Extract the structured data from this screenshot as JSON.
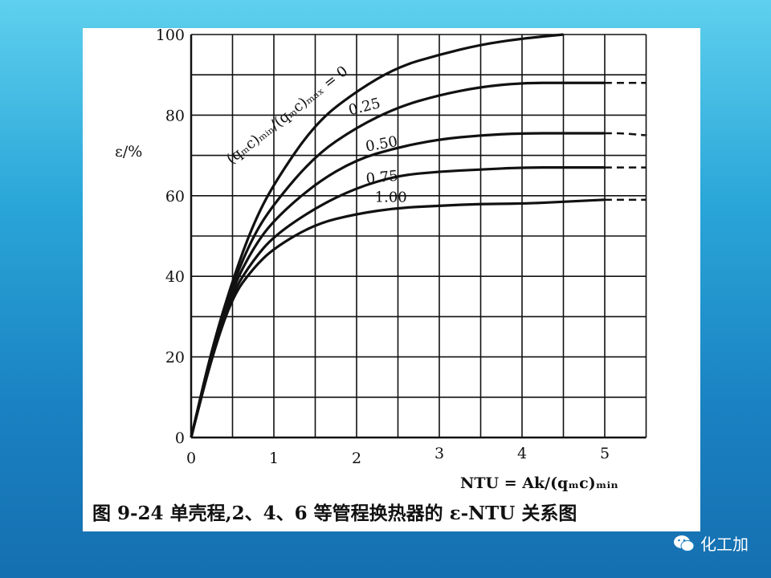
{
  "caption": "图 9-24   单壳程,2、4、6 等管程换热器的 ε-NTU 关系图",
  "watermark": {
    "text": "化工加",
    "icon": "wechat-icon"
  },
  "chart_data": {
    "type": "line",
    "xlabel": "NTU = Ak/(qₘc)ₘᵢₙ",
    "ylabel": "ε/%",
    "xlim": [
      0,
      5.5
    ],
    "ylim": [
      0,
      100
    ],
    "x_ticks": [
      "0",
      "1",
      "2",
      "3",
      "4",
      "5"
    ],
    "y_ticks": [
      "0",
      "20",
      "40",
      "60",
      "80",
      "100"
    ],
    "grid": true,
    "ratio_label": "(qₘc)ₘᵢₙ/(qₘc)ₘₐₓ = 0",
    "series": [
      {
        "name": "0",
        "x": [
          0,
          0.25,
          0.5,
          0.75,
          1,
          1.5,
          2,
          2.5,
          3,
          3.5,
          4,
          4.5
        ],
        "values": [
          0,
          22,
          39,
          53,
          63,
          78,
          86,
          92,
          95,
          97.5,
          99,
          100
        ]
      },
      {
        "name": "0.25",
        "x": [
          0,
          0.25,
          0.5,
          0.75,
          1,
          1.5,
          2,
          2.5,
          3,
          3.5,
          4,
          4.5,
          5,
          5.2,
          5.5
        ],
        "values": [
          0,
          22,
          38,
          50,
          58,
          70,
          77,
          82,
          85,
          87,
          88,
          88,
          88,
          88,
          88
        ]
      },
      {
        "name": "0.50",
        "x": [
          0,
          0.25,
          0.5,
          0.75,
          1,
          1.5,
          2,
          2.5,
          3,
          3.5,
          4,
          4.5,
          5,
          5.2,
          5.5
        ],
        "values": [
          0,
          21,
          37,
          47,
          54,
          63,
          69,
          72,
          74,
          75,
          75.5,
          75.5,
          75.5,
          75.5,
          75
        ]
      },
      {
        "name": "0.75",
        "x": [
          0,
          0.25,
          0.5,
          0.75,
          1,
          1.5,
          2,
          2.5,
          3,
          3.5,
          4,
          4.5,
          5,
          5.2,
          5.5
        ],
        "values": [
          0,
          21,
          36,
          44,
          50,
          57,
          62,
          65,
          66,
          66.5,
          67,
          67,
          67,
          67,
          67
        ]
      },
      {
        "name": "1.00",
        "x": [
          0,
          0.25,
          0.5,
          0.75,
          1,
          1.5,
          2,
          2.5,
          3,
          3.5,
          4,
          4.5,
          5,
          5.2,
          5.5
        ],
        "values": [
          0,
          20,
          35,
          42,
          47,
          53,
          55.5,
          57,
          57.5,
          58,
          58,
          58.5,
          59,
          59,
          59
        ]
      }
    ],
    "dashed_from_x": 5.0
  }
}
